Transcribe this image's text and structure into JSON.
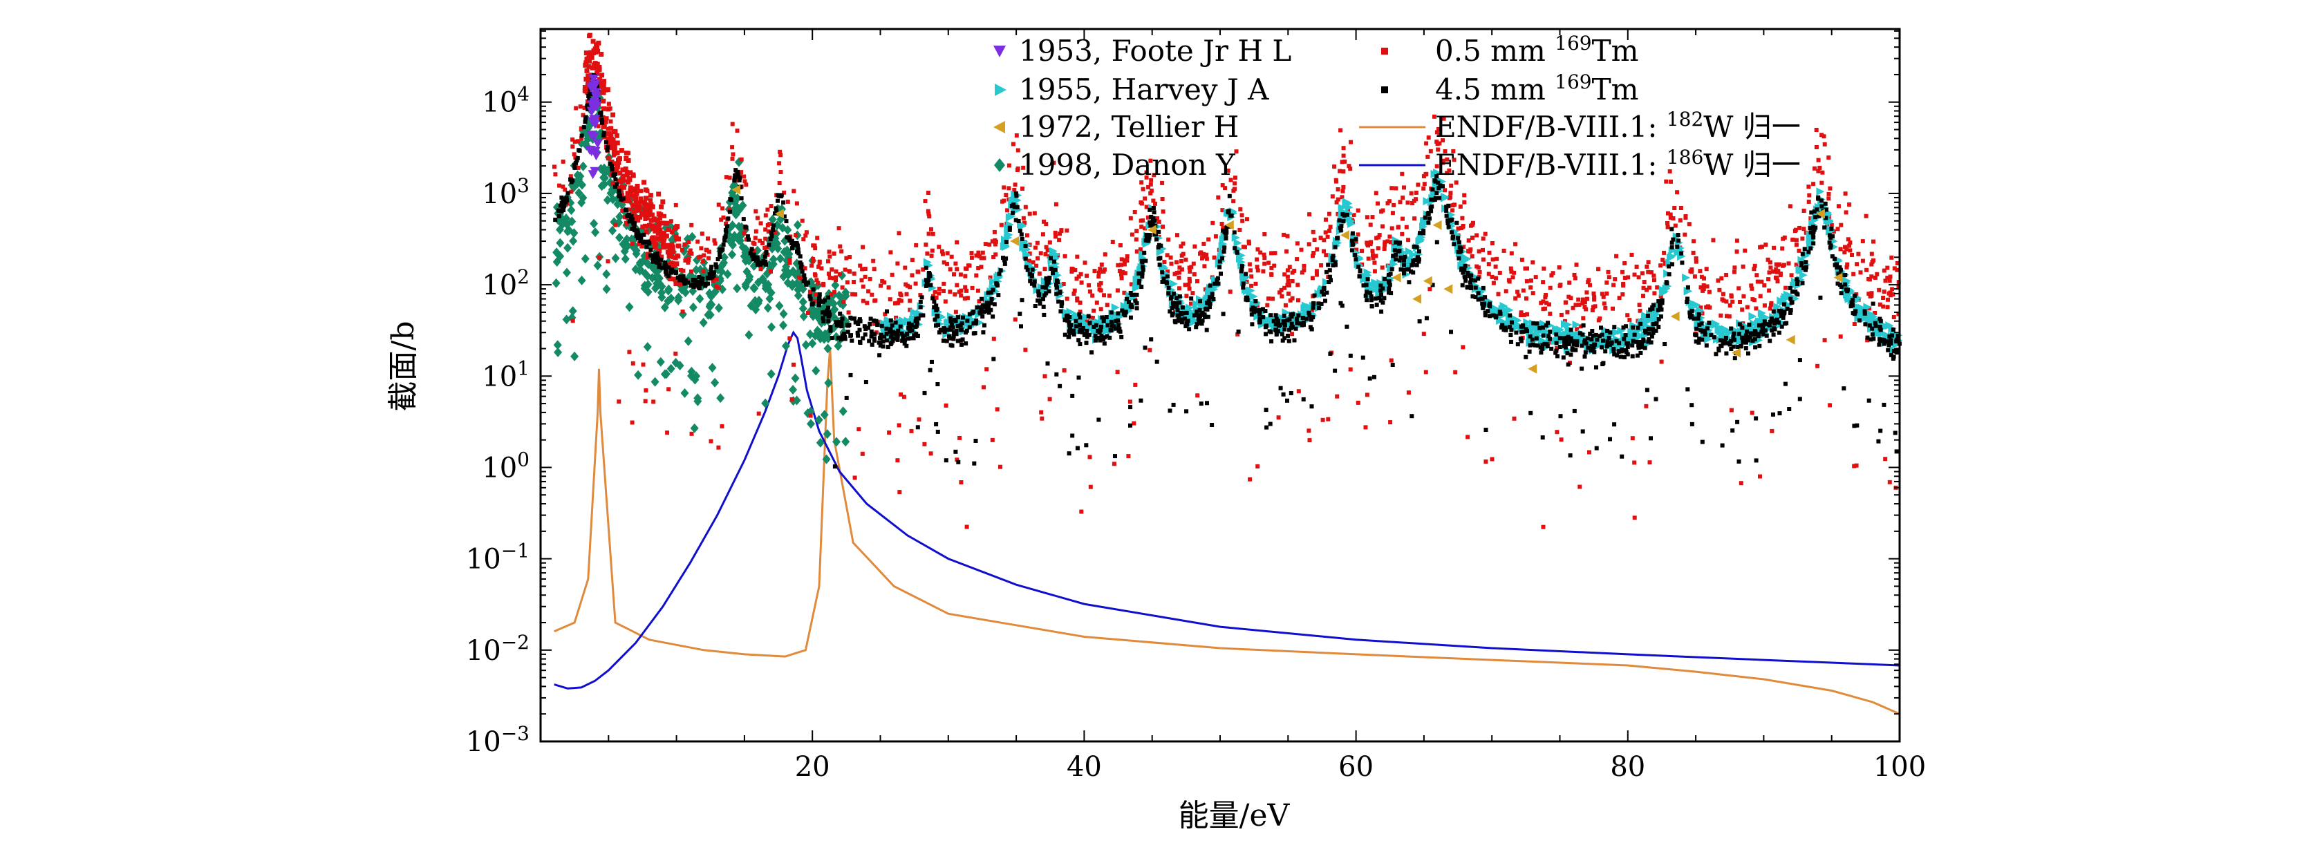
{
  "chart_data": {
    "type": "scatter",
    "title": "",
    "xlabel": "能量/eV",
    "ylabel": "截面/b",
    "xlim": [
      0,
      100
    ],
    "ylim_log10": [
      -3,
      4.8
    ],
    "x_ticks": [
      20,
      40,
      60,
      80,
      100
    ],
    "y_ticks": [
      {
        "exp": -3,
        "mantissa": "10",
        "sup": "−3"
      },
      {
        "exp": -2,
        "mantissa": "10",
        "sup": "−2"
      },
      {
        "exp": -1,
        "mantissa": "10",
        "sup": "−1"
      },
      {
        "exp": 0,
        "mantissa": "10",
        "sup": "0"
      },
      {
        "exp": 1,
        "mantissa": "10",
        "sup": "1"
      },
      {
        "exp": 2,
        "mantissa": "10",
        "sup": "2"
      },
      {
        "exp": 3,
        "mantissa": "10",
        "sup": "3"
      },
      {
        "exp": 4,
        "mantissa": "10",
        "sup": "4"
      }
    ],
    "legend": {
      "placement": "top-center",
      "col1": [
        {
          "label": "1953, Foote Jr H L",
          "color": "#7b2fe0",
          "marker": "triangle-down"
        },
        {
          "label": "1955, Harvey J A",
          "color": "#27c8d0",
          "marker": "triangle-right"
        },
        {
          "label": "1972, Tellier H",
          "color": "#d4a020",
          "marker": "triangle-left"
        },
        {
          "label": "1998, Danon Y",
          "color": "#138a65",
          "marker": "diamond"
        }
      ],
      "col2": [
        {
          "label_pre": "0.5 mm ",
          "label_sup": "169",
          "label_post": "Tm",
          "color": "#e01010",
          "marker": "square"
        },
        {
          "label_pre": "4.5 mm ",
          "label_sup": "169",
          "label_post": "Tm",
          "color": "#000000",
          "marker": "square"
        },
        {
          "label_pre": "ENDF/B-VIII.1: ",
          "label_sup": "182",
          "label_post": "W 归一",
          "color": "#e08a3c",
          "marker": "line"
        },
        {
          "label_pre": "ENDF/B-VIII.1: ",
          "label_sup": "186",
          "label_post": "W 归一",
          "color": "#1010cc",
          "marker": "line"
        }
      ]
    },
    "resonances_eV": [
      3.9,
      14.4,
      17.6,
      18.8,
      28.5,
      34.9,
      37.7,
      45.0,
      50.7,
      59.2,
      63.0,
      66.0,
      83.5,
      94.2
    ],
    "series": [
      {
        "name": "1953, Foote Jr H L",
        "x": [
          3.6,
          3.75,
          3.85,
          3.9,
          3.95,
          4.05,
          4.2
        ],
        "y": [
          3000,
          8000,
          15000,
          18000,
          16000,
          9000,
          3500
        ]
      },
      {
        "name": "1972, Tellier H",
        "x": [
          14.4,
          17.6,
          34.9,
          45.0,
          50.7,
          59.2,
          63.0,
          64.5,
          65.3,
          66.0,
          66.8,
          73.0,
          83.5,
          88.0,
          92.0,
          94.2,
          95.5
        ],
        "y": [
          1100,
          600,
          300,
          400,
          450,
          350,
          120,
          70,
          110,
          450,
          90,
          12,
          45,
          18,
          25,
          600,
          120
        ]
      },
      {
        "name": "ENDF/B-VIII.1: 182W 归一",
        "x": [
          1,
          2.5,
          3.5,
          4.2,
          4.3,
          4.4,
          5.5,
          8,
          12,
          15,
          18,
          19.5,
          20.5,
          21.1,
          21.3,
          21.6,
          23,
          26,
          30,
          40,
          50,
          60,
          70,
          80,
          85,
          90,
          95,
          98,
          100
        ],
        "y": [
          0.016,
          0.02,
          0.06,
          4,
          12,
          4,
          0.02,
          0.013,
          0.01,
          0.009,
          0.0085,
          0.01,
          0.05,
          8,
          20,
          2,
          0.15,
          0.05,
          0.025,
          0.014,
          0.0105,
          0.009,
          0.0078,
          0.0068,
          0.0058,
          0.0048,
          0.0036,
          0.0027,
          0.002
        ]
      },
      {
        "name": "ENDF/B-VIII.1: 186W 归一",
        "x": [
          1,
          2,
          3,
          4,
          5,
          7,
          9,
          11,
          13,
          15,
          16.5,
          17.5,
          18.2,
          18.6,
          18.9,
          19.2,
          19.6,
          20.5,
          22,
          24,
          27,
          30,
          35,
          40,
          50,
          60,
          70,
          80,
          90,
          100
        ],
        "y": [
          0.0042,
          0.0038,
          0.0039,
          0.0046,
          0.006,
          0.012,
          0.03,
          0.09,
          0.3,
          1.2,
          4,
          10,
          22,
          30,
          26,
          15,
          7,
          2.5,
          0.9,
          0.4,
          0.18,
          0.1,
          0.052,
          0.032,
          0.018,
          0.013,
          0.0105,
          0.009,
          0.0078,
          0.0068
        ]
      }
    ]
  }
}
